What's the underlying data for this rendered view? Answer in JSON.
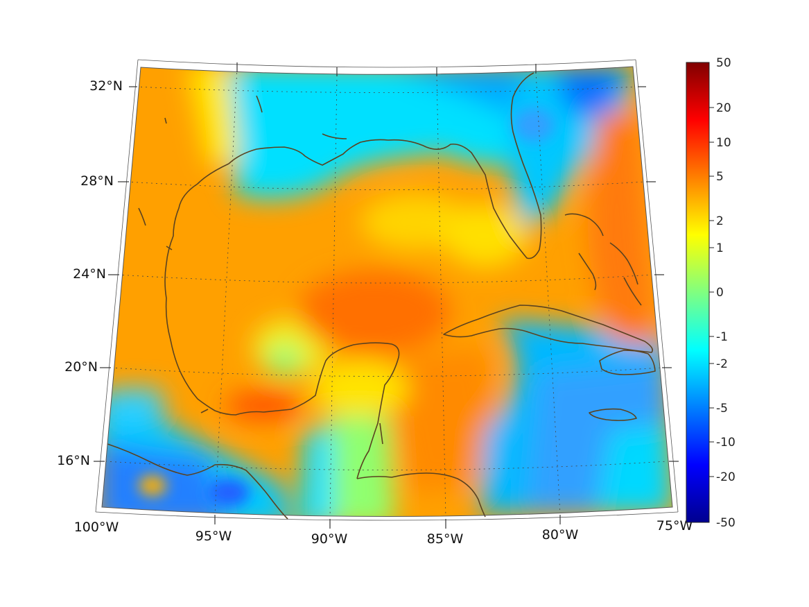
{
  "map": {
    "lat_labels": [
      "32°N",
      "28°N",
      "24°N",
      "20°N",
      "16°N"
    ],
    "lon_labels": [
      "100°W",
      "95°W",
      "90°W",
      "85°W",
      "80°W",
      "75°W"
    ],
    "colorbar": {
      "tick_labels": [
        "50",
        "20",
        "10",
        "5",
        "2",
        "1",
        "0",
        "-1",
        "-2",
        "-5",
        "-10",
        "-20",
        "-50"
      ],
      "colors": [
        "#00008f",
        "#0000ff",
        "#0080ff",
        "#00ffff",
        "#80ff80",
        "#ffff00",
        "#ff8000",
        "#ff0000",
        "#800000"
      ]
    },
    "colors": {
      "coast": "#5a4220",
      "frame": "#555555",
      "grid": "#444444",
      "land_field": [
        "#ff8c00",
        "#ffa500",
        "#ffd000",
        "#80ff80",
        "#00e5ff",
        "#0080ff"
      ]
    }
  }
}
